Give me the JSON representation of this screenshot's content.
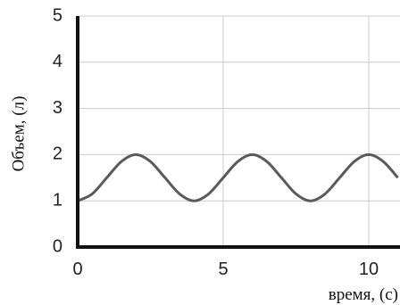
{
  "chart_data": {
    "type": "line",
    "title": "",
    "xlabel": "время, (с)",
    "ylabel": "Объем, (л)",
    "xlim": [
      0,
      11
    ],
    "ylim": [
      0,
      5
    ],
    "x_ticks": [
      "0",
      "5",
      "10"
    ],
    "y_ticks": [
      "0",
      "1",
      "2",
      "3",
      "4",
      "5"
    ],
    "grid": true,
    "legend": "none",
    "series": [
      {
        "x": [
          0,
          0.5,
          1,
          1.5,
          2,
          2.5,
          3,
          3.5,
          4,
          4.5,
          5,
          5.5,
          6,
          6.5,
          7,
          7.5,
          8,
          8.5,
          9,
          9.5,
          10,
          10.5,
          11
        ],
        "values": [
          1.0,
          1.15,
          1.5,
          1.85,
          2.0,
          1.85,
          1.5,
          1.15,
          1.0,
          1.15,
          1.5,
          1.85,
          2.0,
          1.85,
          1.5,
          1.15,
          1.0,
          1.15,
          1.5,
          1.85,
          2.0,
          1.85,
          1.5
        ],
        "color": "#5a5a5a"
      }
    ],
    "colors": {
      "axis": "#111111",
      "grid": "#cccccc"
    }
  }
}
